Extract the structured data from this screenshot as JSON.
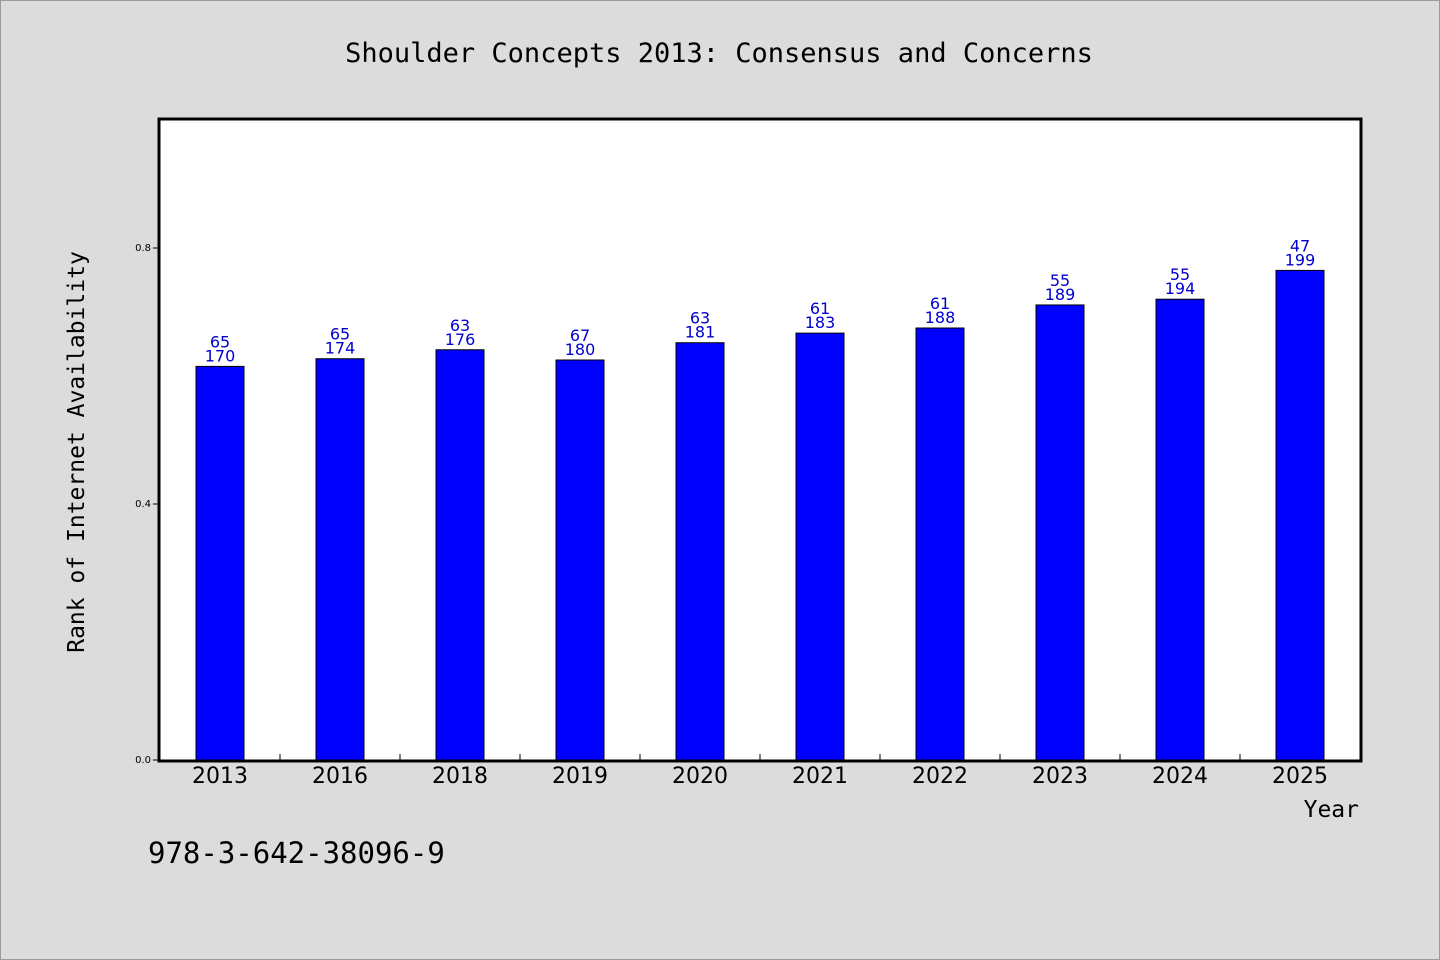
{
  "chart_data": {
    "type": "bar",
    "title": "Shoulder Concepts 2013: Consensus and Concerns",
    "xlabel": "Year",
    "ylabel": "Rank of Internet Availability",
    "footer_text": "978-3-642-38096-9",
    "categories": [
      "2013",
      "2016",
      "2018",
      "2019",
      "2020",
      "2021",
      "2022",
      "2023",
      "2024",
      "2025"
    ],
    "values": [
      0.615,
      0.627,
      0.641,
      0.625,
      0.652,
      0.667,
      0.675,
      0.711,
      0.72,
      0.765
    ],
    "bar_labels_top": [
      "65",
      "65",
      "63",
      "67",
      "63",
      "61",
      "61",
      "55",
      "55",
      "47"
    ],
    "bar_labels_bottom": [
      "170",
      "174",
      "176",
      "180",
      "181",
      "183",
      "188",
      "189",
      "194",
      "199"
    ],
    "yticks": [
      {
        "value": 0.0,
        "label": "0.0"
      },
      {
        "value": 0.4,
        "label": "0.4"
      },
      {
        "value": 0.8,
        "label": "0.8"
      }
    ],
    "ylim": [
      0,
      1.0
    ],
    "grid": false,
    "colors": {
      "bar": "#0000ff",
      "bar_label": "#0000cc",
      "background": "#dcdcdc",
      "plot_background": "#ffffff"
    }
  }
}
